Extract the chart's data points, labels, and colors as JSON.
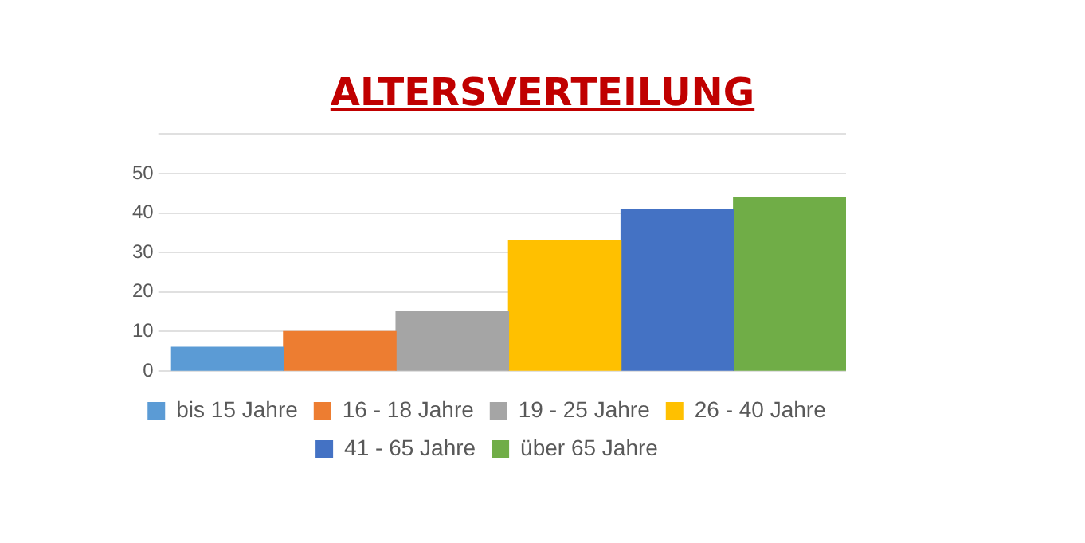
{
  "chart_data": {
    "type": "bar",
    "title": "ALTERSVERTEILUNG",
    "categories": [
      null,
      null,
      null,
      null,
      null,
      null
    ],
    "series": [
      {
        "name": "bis 15 Jahre",
        "color": "#5b9bd5",
        "values": [
          6,
          null,
          null,
          null,
          null,
          null
        ]
      },
      {
        "name": "16 - 18 Jahre",
        "color": "#ed7d31",
        "values": [
          null,
          10,
          null,
          null,
          null,
          null
        ]
      },
      {
        "name": "19 - 25 Jahre",
        "color": "#a5a5a5",
        "values": [
          null,
          null,
          15,
          null,
          null,
          null
        ]
      },
      {
        "name": "26 - 40 Jahre",
        "color": "#ffc000",
        "values": [
          null,
          null,
          null,
          33,
          null,
          null
        ]
      },
      {
        "name": "41 - 65 Jahre",
        "color": "#4472c4",
        "values": [
          null,
          null,
          null,
          null,
          41,
          null
        ]
      },
      {
        "name": "über 65 Jahre",
        "color": "#70ad47",
        "values": [
          null,
          null,
          null,
          null,
          null,
          44
        ]
      }
    ],
    "ylim": [
      0,
      60
    ],
    "yticks": [
      0,
      10,
      20,
      30,
      40,
      50,
      {
        "value": 60,
        "label": null
      }
    ],
    "grid": "y",
    "legend": "bottom",
    "tick_labels": "y"
  }
}
